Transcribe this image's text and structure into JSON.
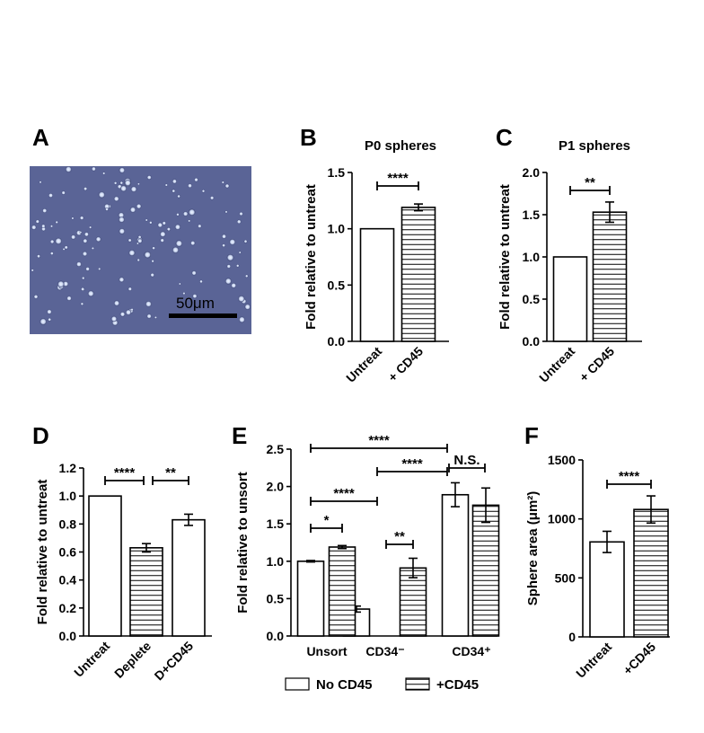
{
  "labels": {
    "A": "A",
    "B": "B",
    "C": "C",
    "D": "D",
    "E": "E",
    "F": "F",
    "scale_bar": "50μm"
  },
  "legend": {
    "no_cd45": "No CD45",
    "plus_cd45": "+CD45"
  },
  "fill_colors": {
    "plain": "#ffffff",
    "hatched_line": "#000000",
    "stroke": "#000000"
  },
  "chart_data": [
    {
      "id": "B",
      "type": "bar",
      "title": "P0 spheres",
      "ylabel": "Fold relative to untreat",
      "categories": [
        "Untreat",
        "+ CD45"
      ],
      "values": [
        1.0,
        1.19
      ],
      "errors": [
        0,
        0.03
      ],
      "patterns": [
        "plain",
        "hatched"
      ],
      "ylim": [
        0,
        1.5
      ],
      "yticks": [
        "0.0",
        "0.5",
        "1.0",
        "1.5"
      ],
      "significance": [
        {
          "from": 0,
          "to": 1,
          "label": "****"
        }
      ]
    },
    {
      "id": "C",
      "type": "bar",
      "title": "P1 spheres",
      "ylabel": "Fold relative to untreat",
      "categories": [
        "Untreat",
        "+ CD45"
      ],
      "values": [
        1.0,
        1.53
      ],
      "errors": [
        0,
        0.12
      ],
      "patterns": [
        "plain",
        "hatched"
      ],
      "ylim": [
        0,
        2.0
      ],
      "yticks": [
        "0.0",
        "0.5",
        "1.0",
        "1.5",
        "2.0"
      ],
      "significance": [
        {
          "from": 0,
          "to": 1,
          "label": "**"
        }
      ]
    },
    {
      "id": "D",
      "type": "bar",
      "title": "",
      "ylabel": "Fold relative to untreat",
      "categories": [
        "Untreat",
        "Deplete",
        "D+CD45"
      ],
      "values": [
        1.0,
        0.63,
        0.83
      ],
      "errors": [
        0,
        0.03,
        0.04
      ],
      "patterns": [
        "plain",
        "hatched",
        "plain"
      ],
      "ylim": [
        0,
        1.2
      ],
      "yticks": [
        "0.0",
        "0.2",
        "0.4",
        "0.6",
        "0.8",
        "1.0",
        "1.2"
      ],
      "significance": [
        {
          "from": 0,
          "to": 1,
          "label": "****"
        },
        {
          "from": 1,
          "to": 2,
          "label": "**"
        }
      ]
    },
    {
      "id": "E",
      "type": "bar",
      "title": "",
      "ylabel": "Fold relative to unsort",
      "categories": [
        "Unsort",
        "CD34⁻",
        "CD34⁺"
      ],
      "series": [
        {
          "name": "No CD45",
          "values": [
            1.0,
            0.36,
            1.89
          ],
          "errors": [
            0.01,
            0.04,
            0.16
          ]
        },
        {
          "name": "+CD45",
          "values": [
            1.19,
            0.91,
            1.75
          ],
          "errors": [
            0.02,
            0.13,
            0.23
          ]
        }
      ],
      "ylim": [
        0,
        2.5
      ],
      "yticks": [
        "0.0",
        "0.5",
        "1.0",
        "1.5",
        "2.0",
        "2.5"
      ],
      "significance": [
        {
          "label": "*"
        },
        {
          "label": "****"
        },
        {
          "label": "**"
        },
        {
          "label": "****"
        },
        {
          "label": "****"
        },
        {
          "label": "N.S."
        }
      ]
    },
    {
      "id": "F",
      "type": "bar",
      "title": "",
      "ylabel": "Sphere area (μm²)",
      "categories": [
        "Untreat",
        "+CD45"
      ],
      "values": [
        805,
        1080
      ],
      "errors": [
        90,
        115
      ],
      "patterns": [
        "plain",
        "hatched"
      ],
      "ylim": [
        0,
        1500
      ],
      "yticks": [
        "0",
        "500",
        "1000",
        "1500"
      ],
      "significance": [
        {
          "from": 0,
          "to": 1,
          "label": "****"
        }
      ]
    }
  ]
}
